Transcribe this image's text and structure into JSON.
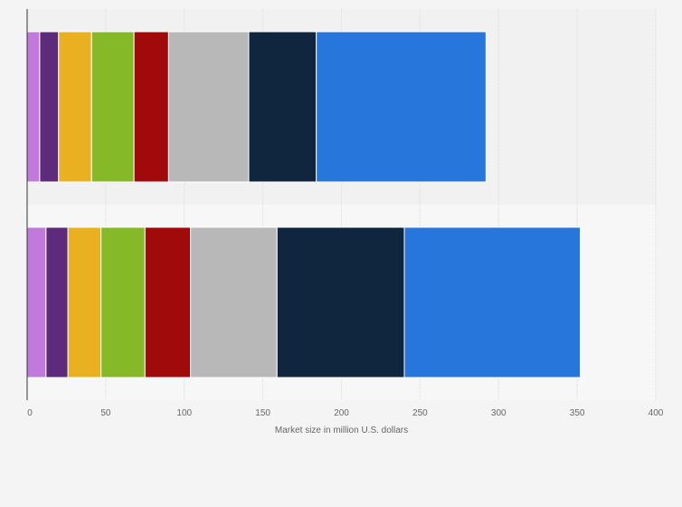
{
  "chart_data": {
    "type": "bar",
    "orientation": "horizontal",
    "stacked": true,
    "title": "",
    "xlabel": "Market size in million U.S. dollars",
    "ylabel": "",
    "xlim": [
      0,
      400
    ],
    "xticks": [
      0,
      50,
      100,
      150,
      200,
      250,
      300,
      350,
      400
    ],
    "grid": true,
    "legend": "none",
    "categories": [
      "",
      ""
    ],
    "series": [
      {
        "color": "#c279dc",
        "values": [
          8,
          12
        ]
      },
      {
        "color": "#5e2a7c",
        "values": [
          12,
          14
        ]
      },
      {
        "color": "#e9b122",
        "values": [
          21,
          21
        ]
      },
      {
        "color": "#86b927",
        "values": [
          27,
          28
        ]
      },
      {
        "color": "#a00a0a",
        "values": [
          22,
          29
        ]
      },
      {
        "color": "#b8b8b8",
        "values": [
          51,
          55
        ]
      },
      {
        "color": "#10263e",
        "values": [
          43,
          81
        ]
      },
      {
        "color": "#2676dc",
        "values": [
          108,
          112
        ]
      }
    ]
  }
}
